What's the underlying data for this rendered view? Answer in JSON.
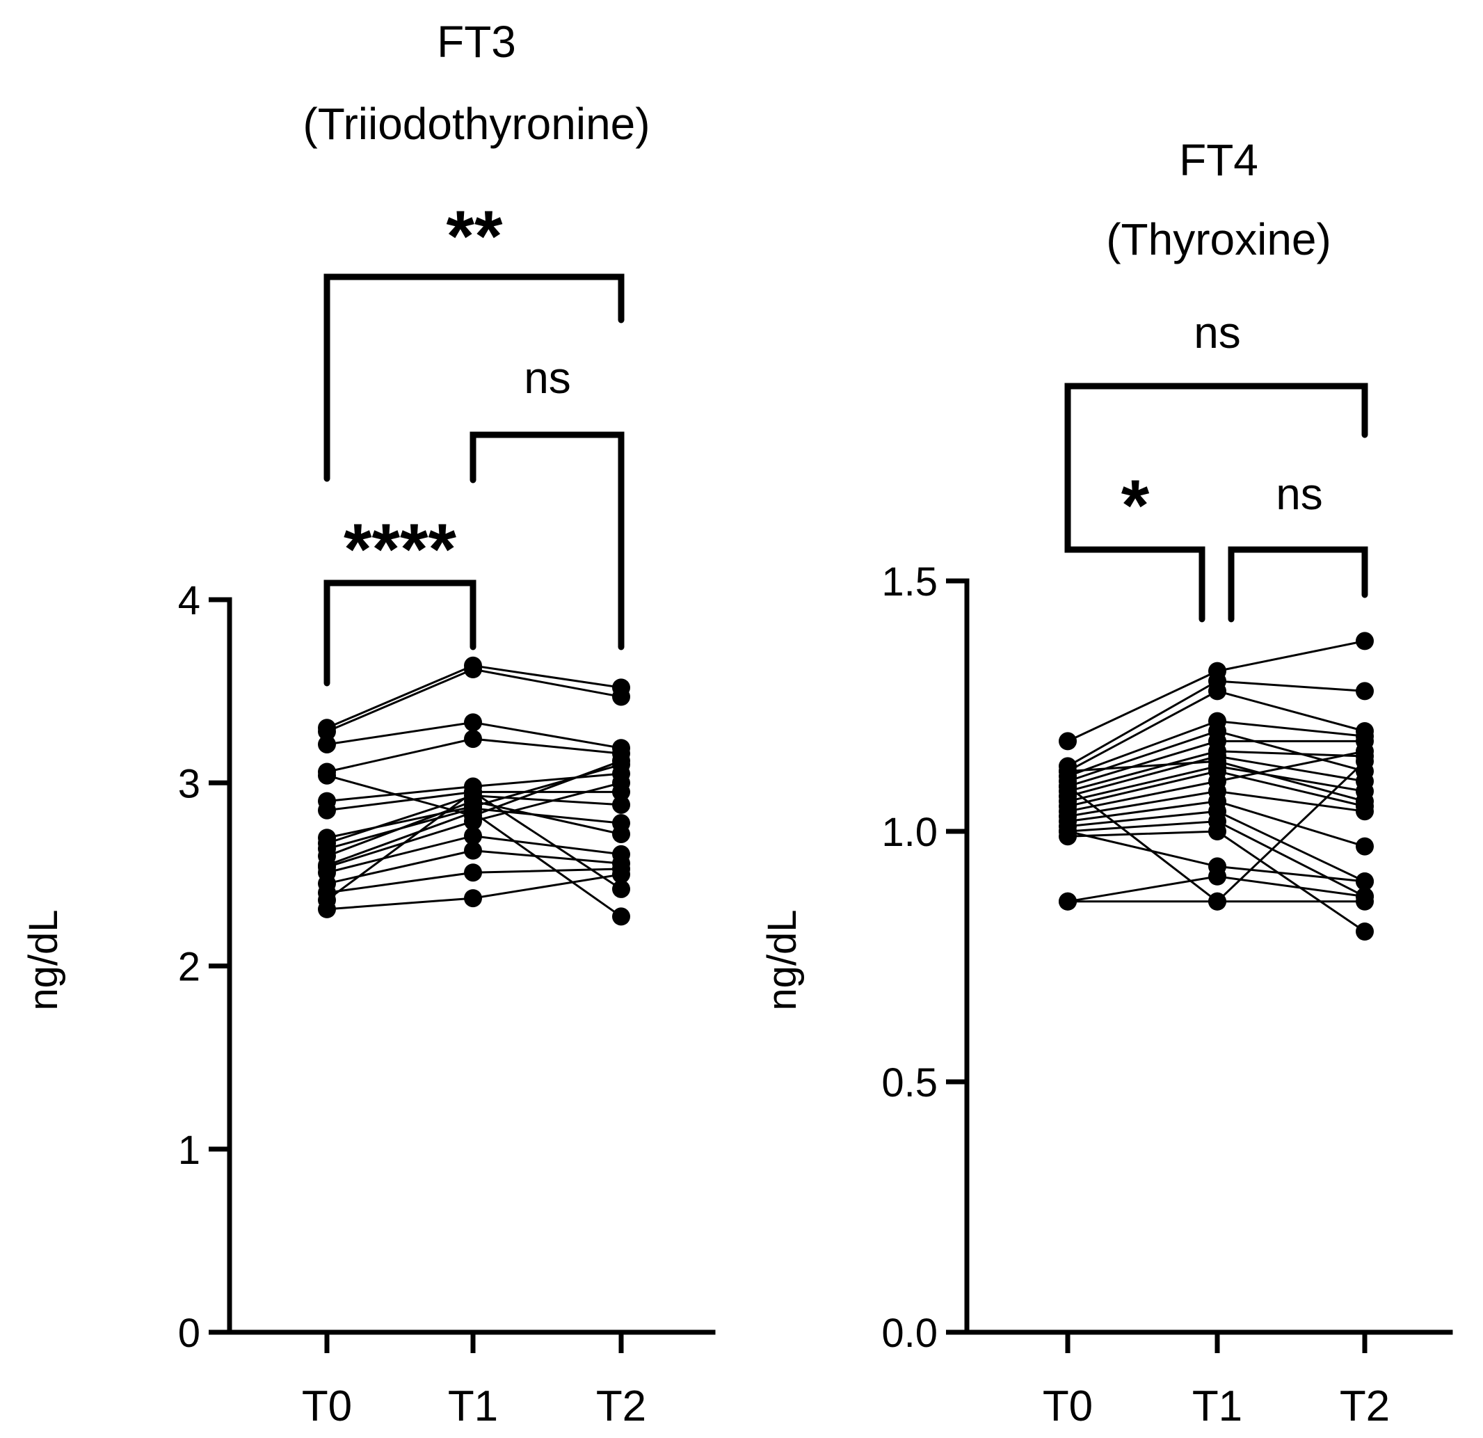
{
  "chart_data": [
    {
      "type": "line",
      "title": "FT3",
      "subtitle": "(Triiodothyronine)",
      "ylabel": "ng/dL",
      "xlabel": "",
      "ylim": [
        0,
        4
      ],
      "yticks": [
        0,
        1,
        2,
        3,
        4
      ],
      "ytick_labels": [
        "0",
        "1",
        "2",
        "3",
        "4"
      ],
      "categories": [
        "T0",
        "T1",
        "T2"
      ],
      "grid": false,
      "legend": "none",
      "series": [
        {
          "values": [
            3.3,
            3.64,
            3.52
          ]
        },
        {
          "values": [
            3.28,
            3.62,
            3.47
          ]
        },
        {
          "values": [
            3.21,
            3.33,
            3.19
          ]
        },
        {
          "values": [
            3.06,
            3.24,
            3.16
          ]
        },
        {
          "values": [
            3.04,
            2.82,
            3.12
          ]
        },
        {
          "values": [
            2.9,
            2.98,
            3.05
          ]
        },
        {
          "values": [
            2.85,
            2.95,
            2.95
          ]
        },
        {
          "values": [
            2.7,
            2.87,
            3.1
          ]
        },
        {
          "values": [
            2.67,
            2.93,
            2.88
          ]
        },
        {
          "values": [
            2.64,
            2.86,
            2.78
          ]
        },
        {
          "values": [
            2.6,
            2.9,
            2.72
          ]
        },
        {
          "values": [
            2.54,
            2.79,
            3.0
          ]
        },
        {
          "values": [
            2.51,
            2.71,
            2.61
          ]
        },
        {
          "values": [
            2.45,
            2.63,
            2.56
          ]
        },
        {
          "values": [
            2.4,
            2.51,
            2.53
          ]
        },
        {
          "values": [
            2.36,
            2.95,
            2.42
          ]
        },
        {
          "values": [
            2.31,
            2.37,
            2.5
          ]
        },
        {
          "values": [
            2.55,
            2.84,
            2.27
          ]
        }
      ],
      "significance": [
        {
          "from": "T0",
          "to": "T1",
          "label": "****"
        },
        {
          "from": "T1",
          "to": "T2",
          "label": "ns"
        },
        {
          "from": "T0",
          "to": "T2",
          "label": "**"
        }
      ]
    },
    {
      "type": "line",
      "title": "FT4",
      "subtitle": "(Thyroxine)",
      "ylabel": "ng/dL",
      "xlabel": "",
      "ylim": [
        0,
        1.5
      ],
      "yticks": [
        0,
        0.5,
        1.0,
        1.5
      ],
      "ytick_labels": [
        "0.0",
        "0.5",
        "1.0",
        "1.5"
      ],
      "categories": [
        "T0",
        "T1",
        "T2"
      ],
      "grid": false,
      "legend": "none",
      "series": [
        {
          "values": [
            1.18,
            1.32,
            1.38
          ]
        },
        {
          "values": [
            1.13,
            1.3,
            1.28
          ]
        },
        {
          "values": [
            1.12,
            1.28,
            1.2
          ]
        },
        {
          "values": [
            1.11,
            1.22,
            1.19
          ]
        },
        {
          "values": [
            1.1,
            1.2,
            1.12
          ]
        },
        {
          "values": [
            1.09,
            1.18,
            1.18
          ]
        },
        {
          "values": [
            1.08,
            1.16,
            1.15
          ]
        },
        {
          "values": [
            1.07,
            1.15,
            1.1
          ]
        },
        {
          "values": [
            1.06,
            1.13,
            1.08
          ]
        },
        {
          "values": [
            1.05,
            1.12,
            1.05
          ]
        },
        {
          "values": [
            1.04,
            1.1,
            1.16
          ]
        },
        {
          "values": [
            1.03,
            1.08,
            1.04
          ]
        },
        {
          "values": [
            1.02,
            1.06,
            0.97
          ]
        },
        {
          "values": [
            1.01,
            1.04,
            0.9
          ]
        },
        {
          "values": [
            1.0,
            1.02,
            0.87
          ]
        },
        {
          "values": [
            0.99,
            1.0,
            0.8
          ]
        },
        {
          "values": [
            1.0,
            0.93,
            0.9
          ]
        },
        {
          "values": [
            0.86,
            0.91,
            0.87
          ]
        },
        {
          "values": [
            0.86,
            0.86,
            0.86
          ]
        },
        {
          "values": [
            1.09,
            0.86,
            1.14
          ]
        },
        {
          "values": [
            1.12,
            1.14,
            1.06
          ]
        }
      ],
      "significance": [
        {
          "from": "T0",
          "to": "T1",
          "label": "*"
        },
        {
          "from": "T1",
          "to": "T2",
          "label": "ns"
        },
        {
          "from": "T0",
          "to": "T2",
          "label": "ns"
        }
      ]
    }
  ]
}
